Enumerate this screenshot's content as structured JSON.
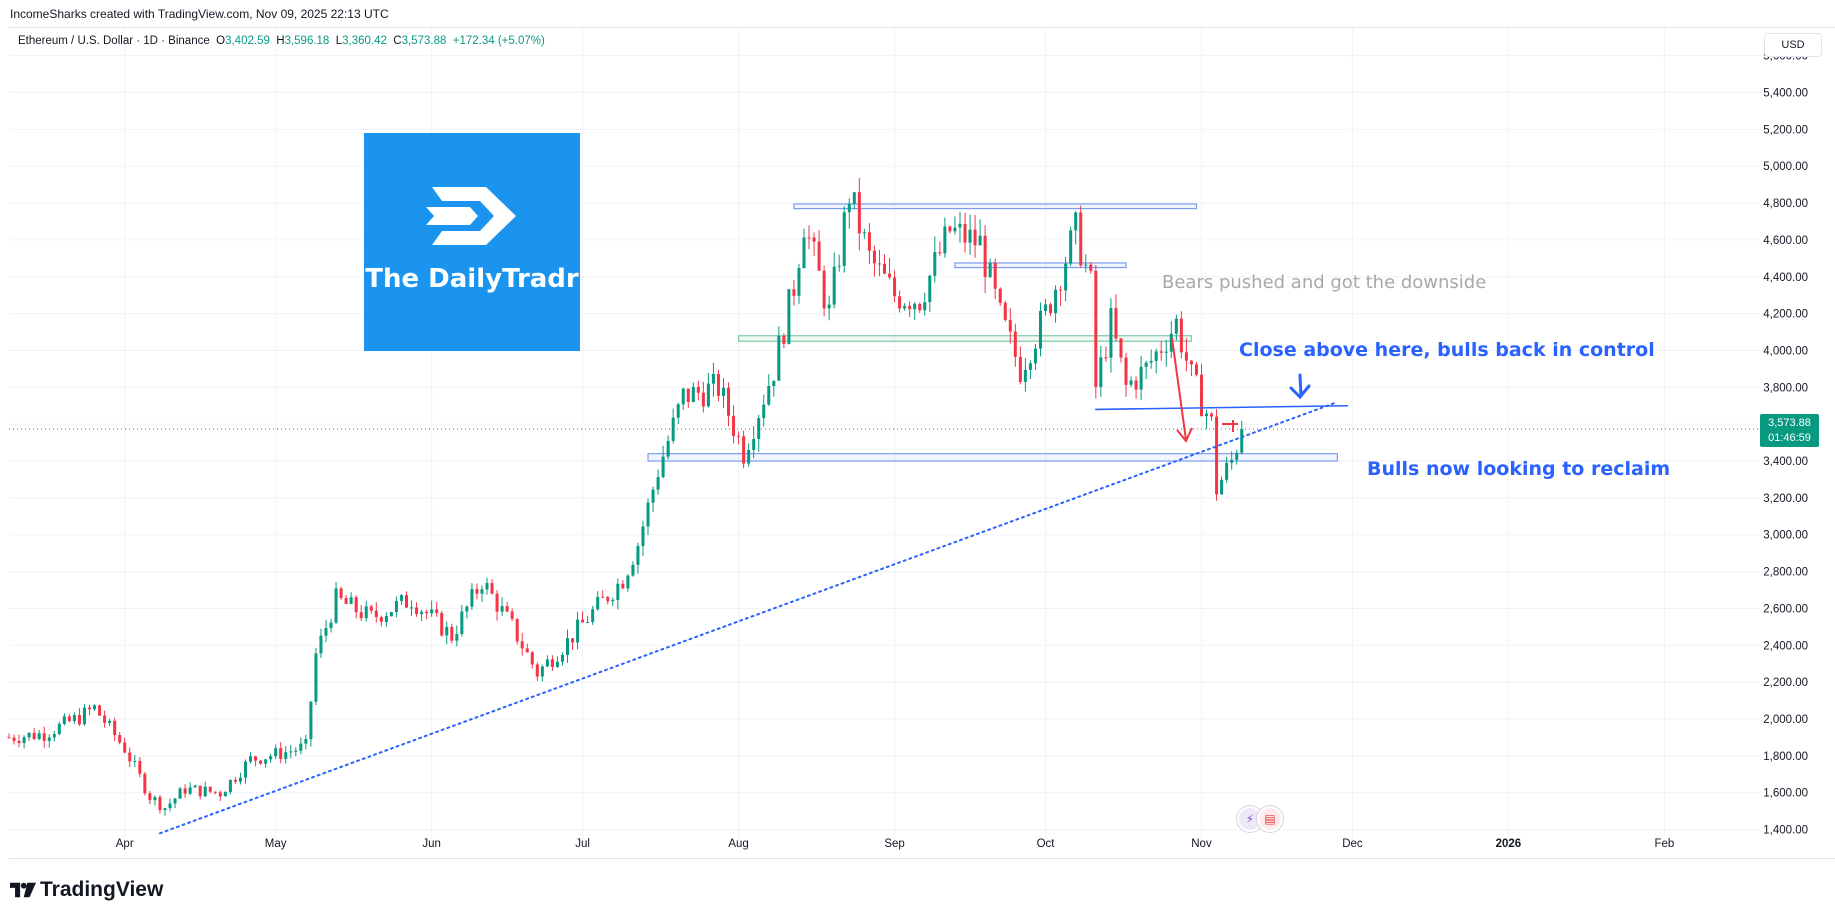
{
  "header": {
    "credit": "IncomeSharks created with TradingView.com, Nov 09, 2025 22:13 UTC"
  },
  "legend": {
    "symbol": "Ethereum / U.S. Dollar · 1D · Binance",
    "open_label": "O",
    "open": "3,402.59",
    "high_label": "H",
    "high": "3,596.18",
    "low_label": "L",
    "low": "3,360.42",
    "close_label": "C",
    "close": "3,573.88",
    "change": "+172.34 (+5.07%)"
  },
  "currency": "USD",
  "price_tag": {
    "price": "3,573.88",
    "countdown": "01:46:59"
  },
  "brand": {
    "name": "TradingView"
  },
  "logo": {
    "text": "The DailyTradr"
  },
  "annotations": {
    "bears": "Bears pushed and got the downside",
    "close_above": "Close above here, bulls back in control",
    "bulls_reclaim": "Bulls now looking to reclaim"
  },
  "colors": {
    "up": "#089981",
    "down": "#f23645",
    "annotation_blue": "#2962ff",
    "zone_blue": "#7b9cf0",
    "zone_green": "#81c9a6",
    "logo_bg": "#1a94ee"
  },
  "icons": [
    "tradingview-logo-icon",
    "dailytradr-logo-icon",
    "lightning-event-icon",
    "us-flag-event-icon"
  ],
  "chart_data": {
    "type": "candlestick",
    "symbol": "ETHUSD",
    "timeframe": "1D",
    "x_range": [
      "2025-03-09",
      "2026-02-20"
    ],
    "ylim": [
      1300,
      5750
    ],
    "y_ticks": [
      1400,
      1600,
      1800,
      2000,
      2200,
      2400,
      2600,
      2800,
      3000,
      3200,
      3400,
      3600,
      3800,
      4000,
      4200,
      4400,
      4600,
      4800,
      5000,
      5200,
      5400,
      5600
    ],
    "y_tick_labels": [
      "1,400.00",
      "1,600.00",
      "1,800.00",
      "2,000.00",
      "2,200.00",
      "2,400.00",
      "2,600.00",
      "2,800.00",
      "3,000.00",
      "3,200.00",
      "3,400.00",
      "3,600.00",
      "3,800.00",
      "4,000.00",
      "4,200.00",
      "4,400.00",
      "4,600.00",
      "4,800.00",
      "5,000.00",
      "5,200.00",
      "5,400.00",
      "5,600.00"
    ],
    "x_ticks": [
      {
        "date": "2025-04-01",
        "label": "Apr"
      },
      {
        "date": "2025-05-01",
        "label": "May"
      },
      {
        "date": "2025-06-01",
        "label": "Jun"
      },
      {
        "date": "2025-07-01",
        "label": "Jul"
      },
      {
        "date": "2025-08-01",
        "label": "Aug"
      },
      {
        "date": "2025-09-01",
        "label": "Sep"
      },
      {
        "date": "2025-10-01",
        "label": "Oct"
      },
      {
        "date": "2025-11-01",
        "label": "Nov"
      },
      {
        "date": "2025-12-01",
        "label": "Dec"
      },
      {
        "date": "2026-01-01",
        "label": "2026"
      },
      {
        "date": "2026-02-01",
        "label": "Feb"
      }
    ],
    "grid": true,
    "last_close": 3573.88,
    "price_path": [
      [
        "2025-03-09",
        1900
      ],
      [
        "2025-03-16",
        1920
      ],
      [
        "2025-03-23",
        2010
      ],
      [
        "2025-03-26",
        2060
      ],
      [
        "2025-04-01",
        1840
      ],
      [
        "2025-04-06",
        1580
      ],
      [
        "2025-04-09",
        1520
      ],
      [
        "2025-04-13",
        1620
      ],
      [
        "2025-04-20",
        1600
      ],
      [
        "2025-04-26",
        1780
      ],
      [
        "2025-05-03",
        1820
      ],
      [
        "2025-05-07",
        1850
      ],
      [
        "2025-05-09",
        2350
      ],
      [
        "2025-05-13",
        2650
      ],
      [
        "2025-05-20",
        2550
      ],
      [
        "2025-05-28",
        2650
      ],
      [
        "2025-06-05",
        2450
      ],
      [
        "2025-06-11",
        2750
      ],
      [
        "2025-06-17",
        2500
      ],
      [
        "2025-06-22",
        2250
      ],
      [
        "2025-06-28",
        2420
      ],
      [
        "2025-07-03",
        2580
      ],
      [
        "2025-07-09",
        2760
      ],
      [
        "2025-07-12",
        2950
      ],
      [
        "2025-07-16",
        3350
      ],
      [
        "2025-07-21",
        3750
      ],
      [
        "2025-07-28",
        3800
      ],
      [
        "2025-08-02",
        3450
      ],
      [
        "2025-08-08",
        3900
      ],
      [
        "2025-08-12",
        4350
      ],
      [
        "2025-08-14",
        4700
      ],
      [
        "2025-08-19",
        4200
      ],
      [
        "2025-08-23",
        4850
      ],
      [
        "2025-08-27",
        4500
      ],
      [
        "2025-09-01",
        4300
      ],
      [
        "2025-09-06",
        4280
      ],
      [
        "2025-09-12",
        4650
      ],
      [
        "2025-09-18",
        4580
      ],
      [
        "2025-09-22",
        4180
      ],
      [
        "2025-09-26",
        3900
      ],
      [
        "2025-10-01",
        4200
      ],
      [
        "2025-10-05",
        4500
      ],
      [
        "2025-10-07",
        4650
      ],
      [
        "2025-10-10",
        4350
      ],
      [
        "2025-10-11",
        3800
      ],
      [
        "2025-10-14",
        4150
      ],
      [
        "2025-10-17",
        3800
      ],
      [
        "2025-10-21",
        3900
      ],
      [
        "2025-10-27",
        4150
      ],
      [
        "2025-10-30",
        3850
      ],
      [
        "2025-11-03",
        3600
      ],
      [
        "2025-11-04",
        3250
      ],
      [
        "2025-11-07",
        3400
      ],
      [
        "2025-11-09",
        3573.88
      ]
    ],
    "zones": [
      {
        "from": "2025-08-12",
        "to": "2025-10-31",
        "low": 4770,
        "high": 4795,
        "style": "blue"
      },
      {
        "from": "2025-09-13",
        "to": "2025-10-17",
        "low": 4450,
        "high": 4475,
        "style": "blue"
      },
      {
        "from": "2025-08-01",
        "to": "2025-10-30",
        "low": 4050,
        "high": 4080,
        "style": "green"
      },
      {
        "from": "2025-07-14",
        "to": "2025-11-28",
        "low": 3400,
        "high": 3440,
        "style": "blue"
      }
    ],
    "lines": [
      {
        "kind": "trendline",
        "style": "dotted",
        "from": [
          "2025-04-08",
          1380
        ],
        "to": [
          "2025-11-28",
          3720
        ]
      },
      {
        "kind": "horizontal",
        "style": "solid",
        "from": [
          "2025-10-11",
          3680
        ],
        "to": [
          "2025-11-30",
          3700
        ]
      }
    ]
  }
}
